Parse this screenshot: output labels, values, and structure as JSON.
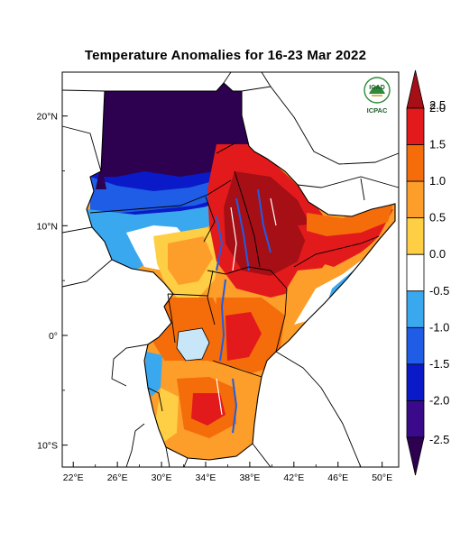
{
  "title": "Temperature Anomalies for 16-23 Mar 2022",
  "logo": {
    "top_text": "IGAD",
    "bottom_text": "ICPAC"
  },
  "map": {
    "lon_range": [
      21,
      51.5
    ],
    "lat_range": [
      -12,
      24
    ],
    "x_ticks": [
      {
        "value": 22,
        "label": "22°E"
      },
      {
        "value": 26,
        "label": "26°E"
      },
      {
        "value": 30,
        "label": "30°E"
      },
      {
        "value": 34,
        "label": "34°E"
      },
      {
        "value": 38,
        "label": "38°E"
      },
      {
        "value": 42,
        "label": "42°E"
      },
      {
        "value": 46,
        "label": "46°E"
      },
      {
        "value": 50,
        "label": "50°E"
      }
    ],
    "y_ticks": [
      {
        "value": 20,
        "label": "20°N"
      },
      {
        "value": 10,
        "label": "10°N"
      },
      {
        "value": 0,
        "label": "0°"
      },
      {
        "value": -10,
        "label": "10°S"
      }
    ]
  },
  "colorbar": {
    "unit": "",
    "labels": [
      "2.5",
      "2.0",
      "1.5",
      "1.0",
      "0.5",
      "0.0",
      "-0.5",
      "-1.0",
      "-1.5",
      "-2.0",
      "-2.5"
    ],
    "colors": [
      "#a50f15",
      "#e31a1c",
      "#f46d0a",
      "#fd9d2a",
      "#fece44",
      "#ffffff",
      "#39a8ee",
      "#1f5de6",
      "#0a1ac8",
      "#3a0a8a",
      "#2d0050"
    ]
  }
}
